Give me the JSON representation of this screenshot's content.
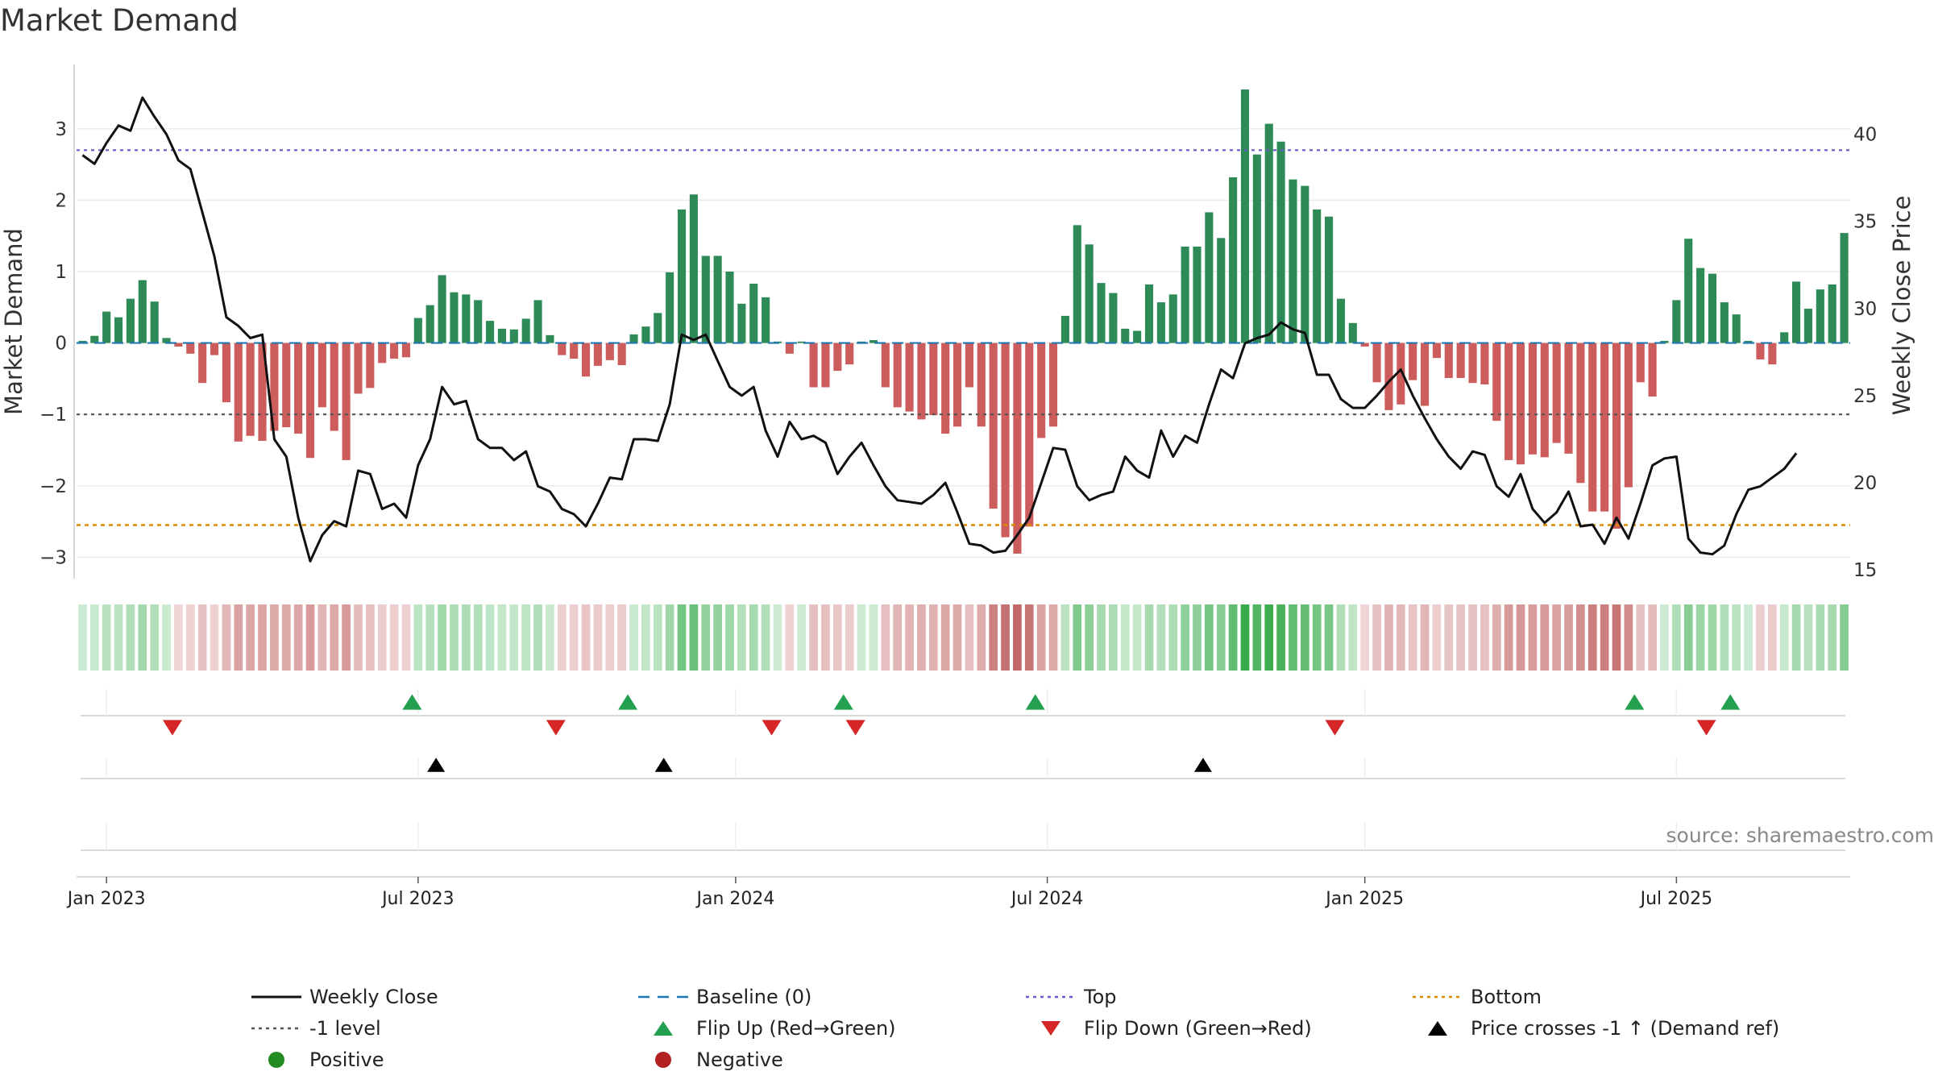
{
  "chart_data": {
    "type": "bar",
    "title": "Market Demand",
    "source": "source: sharemaestro.com",
    "ylabel_left": "Market Demand",
    "ylabel_right": "Weekly Close Price",
    "ylim_left": [
      -3.3,
      3.9
    ],
    "ylim_right": [
      14.5,
      44.0
    ],
    "yticks_left": [
      -3,
      -2,
      -1,
      0,
      1,
      2,
      3
    ],
    "yticks_right": [
      15,
      20,
      25,
      30,
      35,
      40
    ],
    "reference_lines": {
      "top": 2.7,
      "bottom": -2.55,
      "minus_one": -1.0,
      "baseline": 0
    },
    "x_ticks": [
      {
        "label": "Jan 2023",
        "week": 2
      },
      {
        "label": "Jul 2023",
        "week": 28
      },
      {
        "label": "Jan 2024",
        "week": 54.5
      },
      {
        "label": "Jul 2024",
        "week": 80.5
      },
      {
        "label": "Jan 2025",
        "week": 107
      },
      {
        "label": "Jul 2025",
        "week": 133
      }
    ],
    "series": [
      {
        "name": "Market Demand",
        "kind": "bar",
        "values": [
          0.03,
          0.1,
          0.44,
          0.36,
          0.62,
          0.88,
          0.58,
          0.07,
          -0.05,
          -0.15,
          -0.56,
          -0.17,
          -0.83,
          -1.38,
          -1.3,
          -1.37,
          -1.23,
          -1.18,
          -1.27,
          -1.61,
          -0.9,
          -1.23,
          -1.64,
          -0.71,
          -0.63,
          -0.28,
          -0.22,
          -0.2,
          0.35,
          0.53,
          0.95,
          0.71,
          0.68,
          0.6,
          0.31,
          0.2,
          0.19,
          0.34,
          0.6,
          0.11,
          -0.17,
          -0.22,
          -0.47,
          -0.32,
          -0.24,
          -0.31,
          0.12,
          0.23,
          0.42,
          0.99,
          1.87,
          2.08,
          1.22,
          1.22,
          1.0,
          0.55,
          0.83,
          0.64,
          0.02,
          -0.15,
          0.02,
          -0.62,
          -0.62,
          -0.39,
          -0.3,
          0.02,
          0.04,
          -0.62,
          -0.9,
          -0.96,
          -1.07,
          -1.01,
          -1.27,
          -1.17,
          -0.62,
          -1.17,
          -2.32,
          -2.72,
          -2.95,
          -2.57,
          -1.33,
          -1.17,
          0.38,
          1.65,
          1.38,
          0.84,
          0.7,
          0.2,
          0.17,
          0.82,
          0.57,
          0.68,
          1.35,
          1.35,
          1.83,
          1.47,
          2.32,
          3.55,
          2.64,
          3.07,
          2.82,
          2.29,
          2.2,
          1.87,
          1.77,
          0.62,
          0.28,
          -0.05,
          -0.55,
          -0.94,
          -0.86,
          -0.52,
          -0.88,
          -0.21,
          -0.49,
          -0.49,
          -0.56,
          -0.58,
          -1.09,
          -1.64,
          -1.7,
          -1.56,
          -1.6,
          -1.4,
          -1.55,
          -1.96,
          -2.36,
          -2.36,
          -2.6,
          -2.02,
          -0.55,
          -0.75,
          0.03,
          0.6,
          1.46,
          1.05,
          0.97,
          0.57,
          0.4,
          0.03,
          -0.23,
          -0.3,
          0.15,
          0.86,
          0.48,
          0.75,
          0.82,
          1.54
        ]
      },
      {
        "name": "Weekly Close",
        "kind": "line",
        "values": [
          38.8,
          38.3,
          39.5,
          40.5,
          40.2,
          42.1,
          41.0,
          40.0,
          38.5,
          38.0,
          35.5,
          33.0,
          29.5,
          29.0,
          28.3,
          28.5,
          22.5,
          21.5,
          18.0,
          15.5,
          17.0,
          17.8,
          17.5,
          20.7,
          20.5,
          18.5,
          18.8,
          18.0,
          21.0,
          22.5,
          25.5,
          24.5,
          24.7,
          22.5,
          22.0,
          22.0,
          21.3,
          21.8,
          19.8,
          19.5,
          18.5,
          18.2,
          17.5,
          18.8,
          20.3,
          20.2,
          22.5,
          22.5,
          22.4,
          24.5,
          28.5,
          28.2,
          28.5,
          27.0,
          25.5,
          25.0,
          25.5,
          23.0,
          21.5,
          23.5,
          22.5,
          22.7,
          22.3,
          20.5,
          21.5,
          22.3,
          21.0,
          19.8,
          19.0,
          18.9,
          18.8,
          19.3,
          20.0,
          18.3,
          16.5,
          16.4,
          16.0,
          16.1,
          17.0,
          18.0,
          20.0,
          22.0,
          21.9,
          19.8,
          19.0,
          19.3,
          19.5,
          21.5,
          20.7,
          20.3,
          23.0,
          21.5,
          22.7,
          22.3,
          24.5,
          26.5,
          26.0,
          28.0,
          28.3,
          28.5,
          29.2,
          28.8,
          28.6,
          26.2,
          26.2,
          24.8,
          24.3,
          24.3,
          25.0,
          25.8,
          26.5,
          25.0,
          23.7,
          22.5,
          21.5,
          20.8,
          21.8,
          21.6,
          19.8,
          19.2,
          20.5,
          18.5,
          17.7,
          18.3,
          19.5,
          17.5,
          17.6,
          16.5,
          18.0,
          16.8,
          18.8,
          21.0,
          21.4,
          21.5,
          16.8,
          16.0,
          15.9,
          16.4,
          18.2,
          19.6,
          19.8,
          20.3,
          20.8,
          21.7
        ]
      }
    ],
    "flip_up_weeks": [
      27.5,
      45.5,
      63.5,
      79.5,
      129.5,
      137.5
    ],
    "flip_down_weeks": [
      7.5,
      39.5,
      57.5,
      64.5,
      104.5,
      135.5
    ],
    "price_cross_weeks": [
      29.5,
      48.5,
      93.5
    ],
    "legend": [
      {
        "label": "Weekly Close",
        "symbol": "solid-line",
        "color": "#111111"
      },
      {
        "label": "Baseline (0)",
        "symbol": "dash-line",
        "color": "#1f77b4"
      },
      {
        "label": "Top",
        "symbol": "dot-line",
        "color": "#6a5acd"
      },
      {
        "label": "Bottom",
        "symbol": "dot-line",
        "color": "#d98c00"
      },
      {
        "label": "-1 level",
        "symbol": "dot-line",
        "color": "#555555"
      },
      {
        "label": "Flip Up (Red→Green)",
        "symbol": "triangle-up",
        "color": "#22a050"
      },
      {
        "label": "Flip Down (Green→Red)",
        "symbol": "triangle-down",
        "color": "#d62728"
      },
      {
        "label": "Price crosses -1 ↑ (Demand ref)",
        "symbol": "triangle-up",
        "color": "#000000"
      },
      {
        "label": "Positive",
        "symbol": "circle",
        "color": "#228b22"
      },
      {
        "label": "Negative",
        "symbol": "circle",
        "color": "#b22222"
      }
    ],
    "colors": {
      "positive": "#2e8b57",
      "negative": "#cd5c5c"
    }
  }
}
